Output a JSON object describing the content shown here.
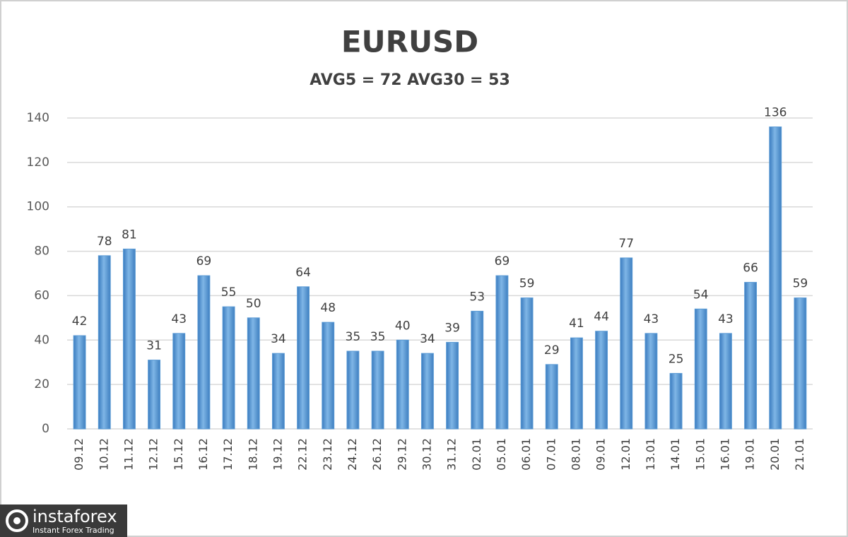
{
  "chart_data": {
    "type": "bar",
    "title": "EURUSD",
    "subtitle": "AVG5 = 72 AVG30 = 53",
    "categories": [
      "09.12",
      "10.12",
      "11.12",
      "12.12",
      "15.12",
      "16.12",
      "17.12",
      "18.12",
      "19.12",
      "22.12",
      "23.12",
      "24.12",
      "26.12",
      "29.12",
      "30.12",
      "31.12",
      "02.01",
      "05.01",
      "06.01",
      "07.01",
      "08.01",
      "09.01",
      "12.01",
      "13.01",
      "14.01",
      "15.01",
      "16.01",
      "19.01",
      "20.01",
      "21.01"
    ],
    "values": [
      42,
      78,
      81,
      31,
      43,
      69,
      55,
      50,
      34,
      64,
      48,
      35,
      35,
      40,
      34,
      39,
      53,
      69,
      59,
      29,
      41,
      44,
      77,
      43,
      25,
      54,
      43,
      66,
      136,
      59
    ],
    "color": "#5b9bd5",
    "ylim": [
      0,
      140
    ],
    "yticks": [
      0,
      20,
      40,
      60,
      80,
      100,
      120,
      140
    ],
    "grid": true
  },
  "watermark": {
    "name": "instaforex",
    "tagline": "Instant Forex Trading"
  }
}
